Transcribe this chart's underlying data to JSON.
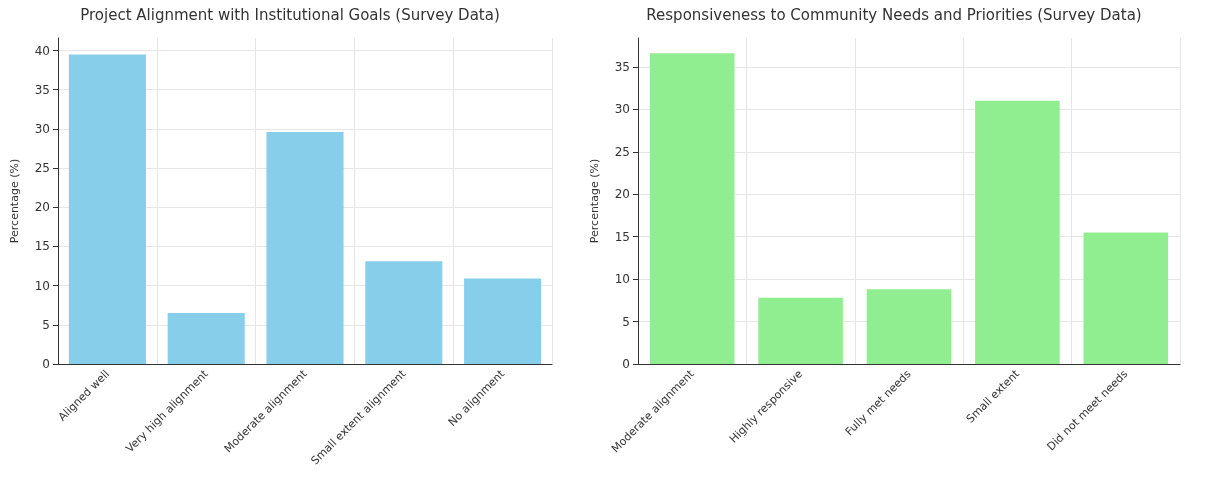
{
  "chart_data": [
    {
      "type": "bar",
      "title": "Project Alignment with Institutional Goals (Survey Data)",
      "ylabel": "Percentage (%)",
      "categories": [
        "Aligned well",
        "Very high alignment",
        "Moderate alignment",
        "Small extent alignment",
        "No alignment"
      ],
      "values": [
        39.5,
        6.5,
        29.6,
        13.1,
        10.9
      ],
      "color": "#87ceeb",
      "ylim": [
        0,
        41.6
      ],
      "yticks": [
        0,
        5,
        10,
        15,
        20,
        25,
        30,
        35,
        40
      ],
      "grid": true
    },
    {
      "type": "bar",
      "title": "Responsiveness to Community Needs and Priorities (Survey Data)",
      "ylabel": "Percentage (%)",
      "categories": [
        "Moderate alignment",
        "Highly responsive",
        "Fully met needs",
        "Small extent",
        "Did not meet needs"
      ],
      "values": [
        36.6,
        7.8,
        8.8,
        31.0,
        15.5
      ],
      "color": "#90ee90",
      "ylim": [
        0,
        38.4
      ],
      "yticks": [
        0,
        5,
        10,
        15,
        20,
        25,
        30,
        35
      ],
      "grid": true
    }
  ]
}
